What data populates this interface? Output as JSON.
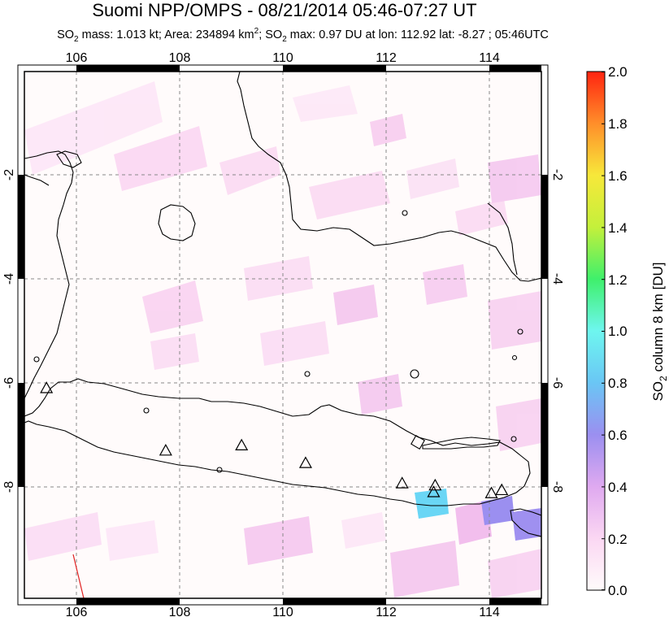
{
  "title": "Suomi NPP/OMPS - 08/21/2014 05:46-07:27 UT",
  "subtitle": {
    "so2_prefix": "SO",
    "sub2": "2",
    "mass_text": " mass: 1.013 kt; Area: 234894 km",
    "sup2": "2",
    "sep": "; ",
    "so2_prefix2": "SO",
    "sub2b": "2",
    "max_text": " max: 0.97 DU at lon: 112.92 lat: -8.27 ; 05:46UTC"
  },
  "map": {
    "lon_ticks": [
      "106",
      "108",
      "110",
      "112",
      "114"
    ],
    "lat_ticks": [
      "-2",
      "-4",
      "-6",
      "-8"
    ],
    "lon_range": [
      105,
      115
    ],
    "lat_range": [
      -10,
      -1.1
    ]
  },
  "colorbar": {
    "label": "SO2 column 8 km [DU]",
    "label_main": "SO",
    "label_sub": "2",
    "label_rest": " column 8 km [DU]",
    "ticks": [
      "2.0",
      "1.8",
      "1.6",
      "1.4",
      "1.2",
      "1.0",
      "0.8",
      "0.6",
      "0.4",
      "0.2",
      "0.0"
    ],
    "colors": [
      "#fffbfb",
      "#fbd7f3",
      "#dfa9f0",
      "#9b8ff0",
      "#6ac6f5",
      "#6ef6ef",
      "#3ff06b",
      "#c4f03b",
      "#f7e83a",
      "#ff8e2a",
      "#ff2410"
    ]
  },
  "volcanoes": [
    {
      "lon": 105.42,
      "lat": -6.1
    },
    {
      "lon": 107.73,
      "lat": -7.3
    },
    {
      "lon": 109.2,
      "lat": -7.2
    },
    {
      "lon": 110.44,
      "lat": -7.54
    },
    {
      "lon": 112.31,
      "lat": -7.93
    },
    {
      "lon": 112.95,
      "lat": -7.97
    },
    {
      "lon": 112.92,
      "lat": -8.1
    },
    {
      "lon": 114.04,
      "lat": -8.12
    },
    {
      "lon": 114.24,
      "lat": -8.06
    }
  ]
}
